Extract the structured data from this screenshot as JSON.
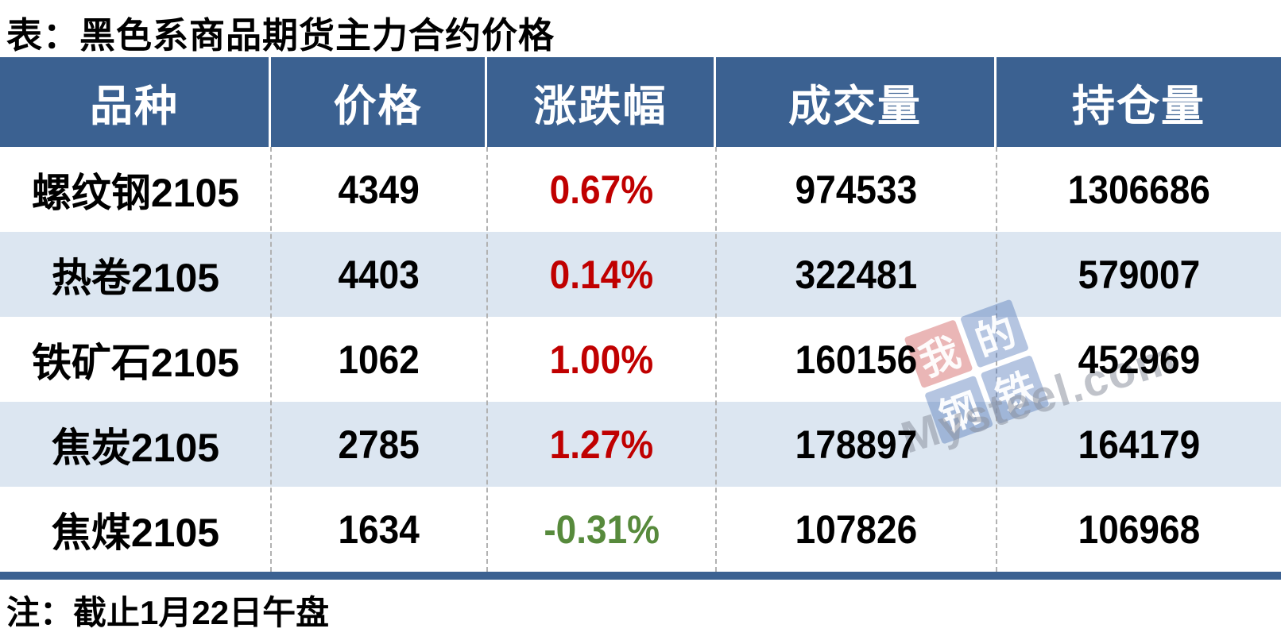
{
  "page": {
    "title": "表：黑色系商品期货主力合约价格",
    "note": "注：截止1月22日午盘"
  },
  "colors": {
    "header_bg": "#3B6191",
    "header_text": "#FFFFFF",
    "stripe_bg": "#DCE6F1",
    "bottom_border": "#3B6191",
    "divider_gray": "#B2B2B2",
    "up_red": "#C00000",
    "down_green": "#578A3C",
    "watermark_red_tile": "rgba(205,80,80,0.42)",
    "watermark_blue_tile": "rgba(70,110,180,0.40)"
  },
  "table": {
    "columns": [
      "品种",
      "价格",
      "涨跌幅",
      "成交量",
      "持仓量"
    ],
    "rows": [
      {
        "variety": "螺纹钢2105",
        "price": "4349",
        "change": "0.67%",
        "change_color": "#C00000",
        "volume": "974533",
        "open_interest": "1306686"
      },
      {
        "variety": "热卷2105",
        "price": "4403",
        "change": "0.14%",
        "change_color": "#C00000",
        "volume": "322481",
        "open_interest": "579007"
      },
      {
        "variety": "铁矿石2105",
        "price": "1062",
        "change": "1.00%",
        "change_color": "#C00000",
        "volume": "160156",
        "open_interest": "452969"
      },
      {
        "variety": "焦炭2105",
        "price": "2785",
        "change": "1.27%",
        "change_color": "#C00000",
        "volume": "178897",
        "open_interest": "164179"
      },
      {
        "variety": "焦煤2105",
        "price": "1634",
        "change": "-0.31%",
        "change_color": "#578A3C",
        "volume": "107826",
        "open_interest": "106968"
      }
    ]
  },
  "watermark": {
    "tiles": [
      {
        "char": "我"
      },
      {
        "char": "的"
      },
      {
        "char": "钢"
      },
      {
        "char": "铁"
      }
    ],
    "text": "Mysteel.com"
  },
  "chart_data": {
    "type": "table",
    "title": "表：黑色系商品期货主力合约价格",
    "columns": [
      "品种",
      "价格",
      "涨跌幅",
      "成交量",
      "持仓量"
    ],
    "rows": [
      [
        "螺纹钢2105",
        4349,
        "0.67%",
        974533,
        1306686
      ],
      [
        "热卷2105",
        4403,
        "0.14%",
        322481,
        579007
      ],
      [
        "铁矿石2105",
        1062,
        "1.00%",
        160156,
        452969
      ],
      [
        "焦炭2105",
        2785,
        "1.27%",
        178897,
        164179
      ],
      [
        "焦煤2105",
        1634,
        "-0.31%",
        107826,
        106968
      ]
    ],
    "note": "注：截止1月22日午盘"
  }
}
